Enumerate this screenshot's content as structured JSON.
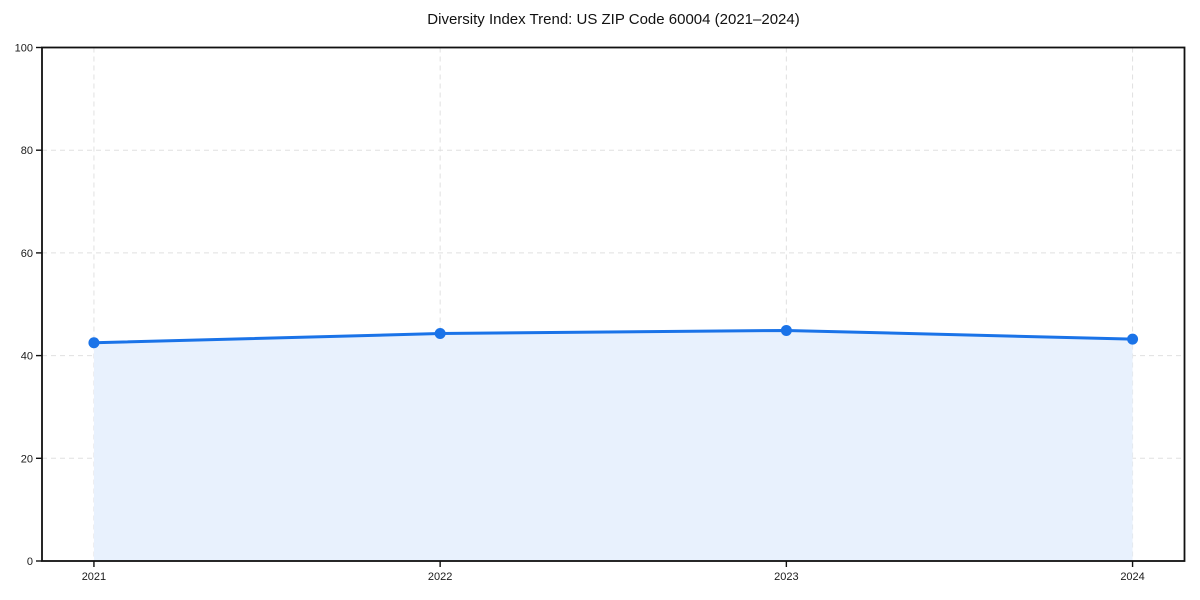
{
  "page": {
    "background": "#ffffff"
  },
  "chart_data": {
    "type": "line",
    "variant": "area-filled-line-with-markers",
    "title": "Diversity Index Trend: US ZIP Code 60004 (2021–2024)",
    "xlabel": "",
    "ylabel": "",
    "x": [
      2021,
      2022,
      2023,
      2024
    ],
    "x_tick_labels": [
      "2021",
      "2022",
      "2023",
      "2024"
    ],
    "series": [
      {
        "name": "Diversity Index",
        "values": [
          42.5,
          44.3,
          44.9,
          43.2
        ]
      }
    ],
    "ylim": [
      0,
      100
    ],
    "yticks": [
      0,
      20,
      40,
      60,
      80,
      100
    ],
    "ytick_labels": [
      "0",
      "20",
      "40",
      "60",
      "80",
      "100"
    ],
    "xlim": [
      2020.85,
      2024.15
    ],
    "grid": "dashed-both-axes",
    "legend": "none",
    "colors": {
      "line": "#1a73e8",
      "marker": "#1a73e8",
      "fill": "#e8f1fd",
      "grid": "#e0e0e0",
      "spine": "#111111",
      "tick_label": "#1a1a1a",
      "title": "#111111",
      "background": "#ffffff"
    }
  }
}
